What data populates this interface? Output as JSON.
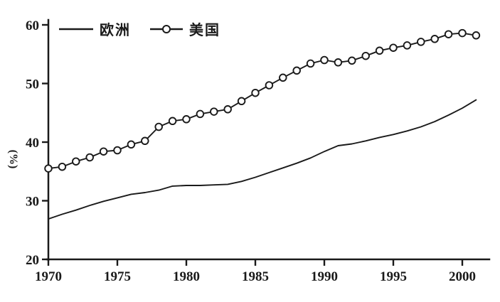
{
  "figure": {
    "background": "#ffffff",
    "ink_color": "#1a1a1a"
  },
  "chart_data": {
    "type": "line",
    "title": "",
    "xlabel": "",
    "ylabel": "(%)",
    "xlim": [
      1970,
      2002
    ],
    "ylim": [
      20,
      60
    ],
    "x_ticks": [
      1970,
      1975,
      1980,
      1985,
      1990,
      1995,
      2000
    ],
    "y_ticks": [
      20,
      30,
      40,
      50,
      60
    ],
    "grid": false,
    "legend_position": "top-left",
    "x": [
      1970,
      1971,
      1972,
      1973,
      1974,
      1975,
      1976,
      1977,
      1978,
      1979,
      1980,
      1981,
      1982,
      1983,
      1984,
      1985,
      1986,
      1987,
      1988,
      1989,
      1990,
      1991,
      1992,
      1993,
      1994,
      1995,
      1996,
      1997,
      1998,
      1999,
      2000,
      2001
    ],
    "series": [
      {
        "name": "欧洲",
        "marker": "none",
        "values": [
          26.9,
          27.7,
          28.4,
          29.2,
          29.9,
          30.5,
          31.1,
          31.4,
          31.8,
          32.5,
          32.6,
          32.6,
          32.7,
          32.8,
          33.3,
          34.0,
          34.8,
          35.6,
          36.4,
          37.3,
          38.4,
          39.4,
          39.7,
          40.2,
          40.8,
          41.3,
          41.9,
          42.6,
          43.5,
          44.6,
          45.8,
          47.2
        ]
      },
      {
        "name": "美国",
        "marker": "circle",
        "values": [
          35.5,
          35.8,
          36.7,
          37.4,
          38.4,
          38.6,
          39.6,
          40.2,
          42.6,
          43.6,
          43.9,
          44.8,
          45.2,
          45.6,
          47.0,
          48.4,
          49.7,
          51.0,
          52.2,
          53.4,
          54.0,
          53.6,
          53.9,
          54.7,
          55.6,
          56.1,
          56.5,
          57.1,
          57.6,
          58.4,
          58.6,
          58.2
        ]
      }
    ]
  }
}
